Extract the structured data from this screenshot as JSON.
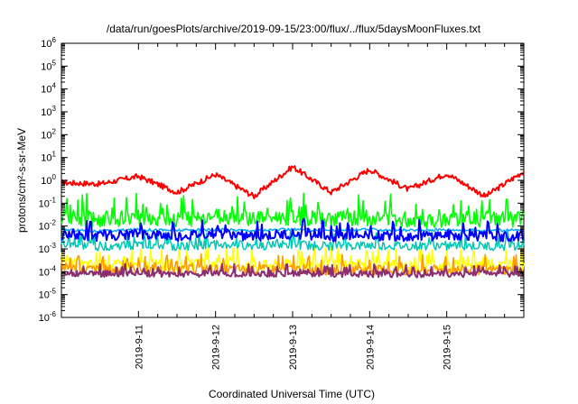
{
  "chart_data": {
    "type": "line",
    "title": "/data/run/goesPlots/archive/2019-09-15/23:00/flux/../flux/5daysMoonFluxes.txt",
    "xlabel": "Coordinated Universal Time (UTC)",
    "ylabel": "protons/cm²-s-sr-MeV",
    "yscale": "log",
    "ylim": [
      1e-06,
      1000000.0
    ],
    "xlim": [
      "2019-09-10 00:00",
      "2019-09-16 00:00"
    ],
    "x_tick_labels": [
      "2019-9-11",
      "2019-9-12",
      "2019-9-13",
      "2019-9-14",
      "2019-9-15"
    ],
    "y_tick_labels": [
      "10-6",
      "10-5",
      "10-4",
      "10-3",
      "10-2",
      "10-1",
      "100",
      "101",
      "102",
      "103",
      "104",
      "105",
      "106"
    ],
    "grid": false,
    "legend": "none",
    "x": [
      "2019-09-10 00:00",
      "2019-09-10 12:00",
      "2019-09-11 00:00",
      "2019-09-11 12:00",
      "2019-09-12 00:00",
      "2019-09-12 12:00",
      "2019-09-13 00:00",
      "2019-09-13 12:00",
      "2019-09-14 00:00",
      "2019-09-14 12:00",
      "2019-09-15 00:00",
      "2019-09-15 12:00",
      "2019-09-16 00:00"
    ],
    "series": [
      {
        "color": "#ff0000",
        "values": [
          0.8,
          0.7,
          1.5,
          0.3,
          1.8,
          0.2,
          4.0,
          0.3,
          3.0,
          0.4,
          2.0,
          0.2,
          2.5
        ]
      },
      {
        "color": "#00ff00",
        "values": [
          0.025,
          0.02,
          0.022,
          0.02,
          0.025,
          0.02,
          0.022,
          0.02,
          0.022,
          0.02,
          0.018,
          0.02,
          0.02
        ]
      },
      {
        "color": "#ffff00",
        "values": [
          0.00025,
          0.0002,
          0.00022,
          0.0002,
          0.00022,
          0.0002,
          0.00022,
          0.0002,
          0.0002,
          0.00018,
          0.0002,
          0.0002,
          0.0002
        ]
      },
      {
        "color": "#00c8b4",
        "values": [
          0.0015,
          0.0013,
          0.0015,
          0.0013,
          0.0015,
          0.0014,
          0.0015,
          0.0013,
          0.0014,
          0.0013,
          0.0014,
          0.0013,
          0.0013
        ]
      },
      {
        "color": "#00aaff",
        "values": [
          0.007,
          0.006,
          0.007,
          0.0065,
          0.007,
          0.0065,
          0.007,
          0.0065,
          0.007,
          0.0065,
          0.007,
          0.0065,
          0.0065
        ]
      },
      {
        "color": "#0000ff",
        "values": [
          0.004,
          0.0035,
          0.0045,
          0.0035,
          0.005,
          0.0035,
          0.0045,
          0.0035,
          0.004,
          0.0035,
          0.004,
          0.0035,
          0.0035
        ]
      },
      {
        "color": "#ff9a00",
        "values": [
          0.00015,
          0.00012,
          0.00013,
          0.00012,
          0.00013,
          0.00012,
          0.00013,
          0.00012,
          0.00012,
          0.00011,
          0.00012,
          0.00012,
          0.00012
        ]
      },
      {
        "color": "#8b2e6f",
        "values": [
          9e-05,
          8e-05,
          8.5e-05,
          8e-05,
          8.5e-05,
          8e-05,
          8.5e-05,
          8e-05,
          8e-05,
          7.5e-05,
          8e-05,
          8e-05,
          8e-05
        ]
      }
    ]
  }
}
